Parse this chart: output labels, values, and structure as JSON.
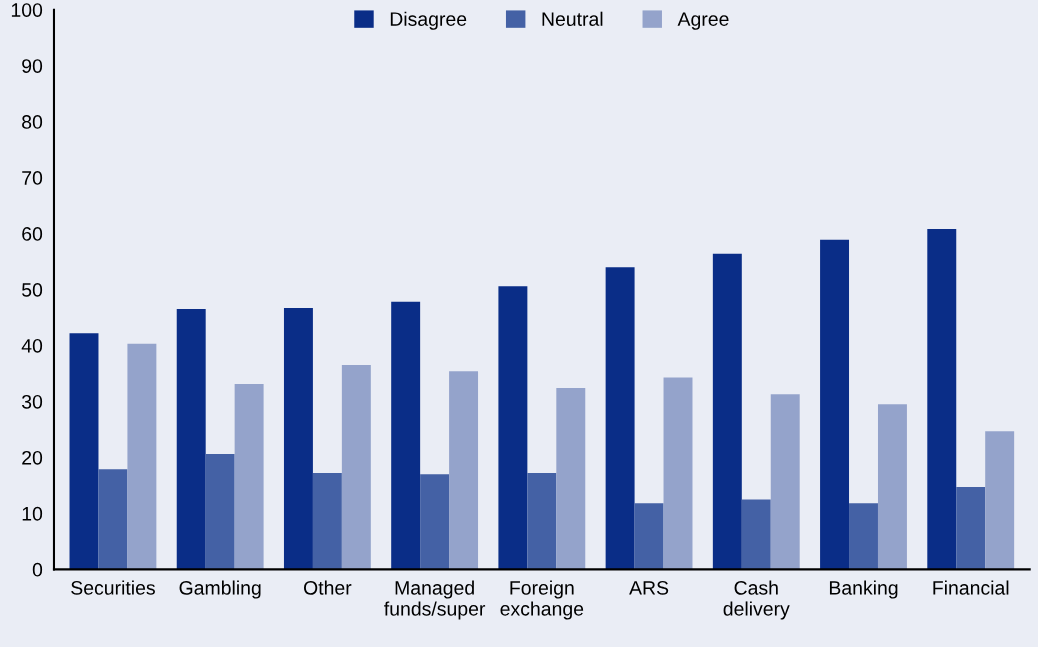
{
  "chart_data": {
    "type": "bar",
    "categories": [
      "Securities",
      "Gambling",
      "Other",
      "Managed\nfunds/super",
      "Foreign\nexchange",
      "ARS",
      "Cash\ndelivery",
      "Banking",
      "Financial"
    ],
    "series": [
      {
        "name": "Disagree",
        "color": "#0a2d87",
        "values": [
          42.2,
          46.5,
          46.7,
          47.8,
          50.6,
          54.0,
          56.4,
          58.9,
          60.8
        ]
      },
      {
        "name": "Neutral",
        "color": "#4461a5",
        "values": [
          17.9,
          20.6,
          17.2,
          17.0,
          17.2,
          11.8,
          12.5,
          11.8,
          14.7
        ]
      },
      {
        "name": "Agree",
        "color": "#94a3cb",
        "values": [
          40.3,
          33.1,
          36.5,
          35.4,
          32.4,
          34.3,
          31.3,
          29.5,
          24.7
        ]
      }
    ],
    "ylim": [
      0,
      100
    ],
    "yticks": [
      0,
      10,
      20,
      30,
      40,
      50,
      60,
      70,
      80,
      90,
      100
    ],
    "grid": false,
    "legend": "top"
  }
}
